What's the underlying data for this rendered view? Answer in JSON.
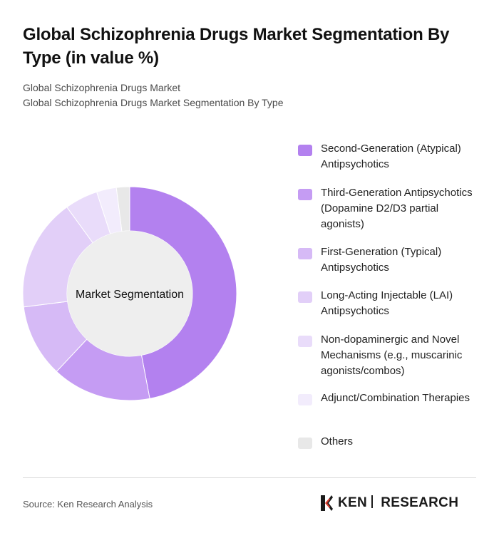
{
  "title": "Global Schizophrenia Drugs Market Segmentation By Type (in value %)",
  "subtitle": {
    "line1": "Global Schizophrenia Drugs Market",
    "line2": "Global Schizophrenia Drugs Market Segmentation By Type"
  },
  "chart_data": {
    "type": "pie",
    "center_label": "Market Segmentation",
    "categories": [
      "Second-Generation (Atypical) Antipsychotics",
      "Third-Generation Antipsychotics (Dopamine D2/D3 partial agonists)",
      "First-Generation (Typical) Antipsychotics",
      "Long-Acting Injectable (LAI) Antipsychotics",
      "Non-dopaminergic and Novel Mechanisms (e.g., muscarinic agonists/combos)",
      "Adjunct/Combination Therapies",
      "Others"
    ],
    "values": [
      47,
      15,
      11,
      17,
      5,
      3,
      2
    ],
    "colors": [
      "#b381ef",
      "#c59cf3",
      "#d6baf6",
      "#e2cff8",
      "#e9dcfa",
      "#f2ecfc",
      "#e8e8e8"
    ],
    "legend_position": "right"
  },
  "footer": {
    "source": "Source: Ken Research Analysis",
    "brand_left": "KEN",
    "brand_right": "RESEARCH"
  }
}
